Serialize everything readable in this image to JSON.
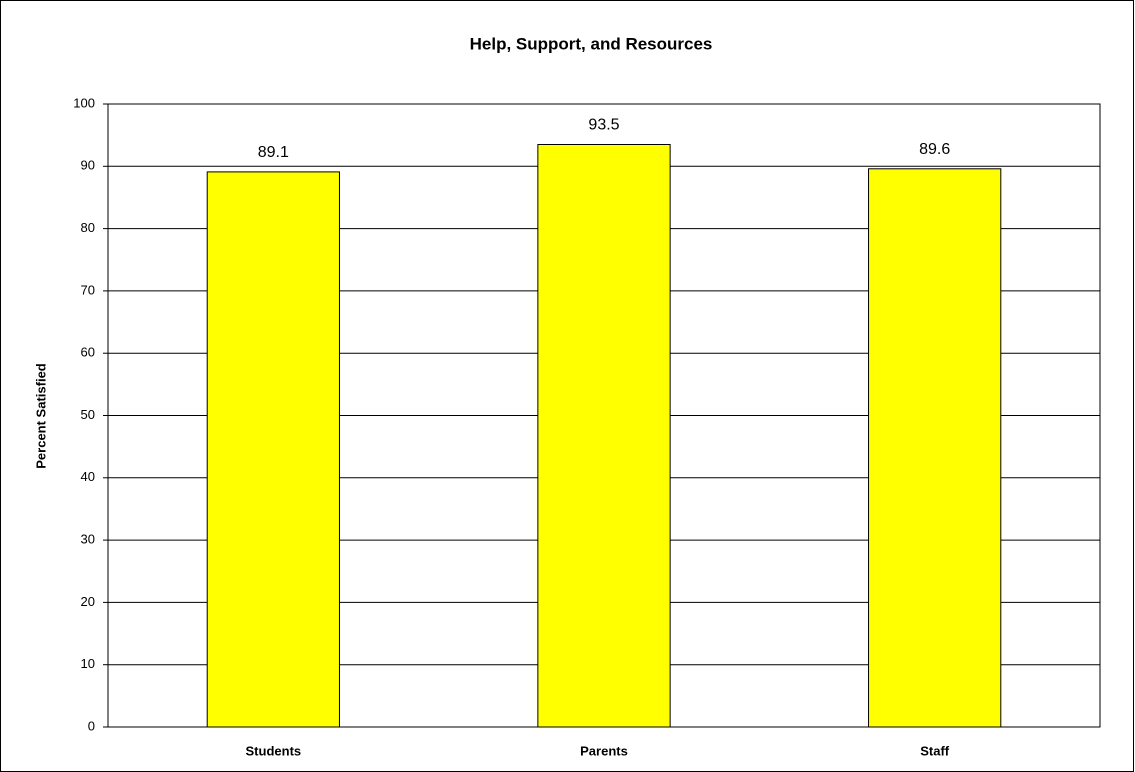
{
  "chart_data": {
    "type": "bar",
    "title": "Help, Support, and Resources",
    "y_label": "Percent Satisfied",
    "categories": [
      "Students",
      "Parents",
      "Staff"
    ],
    "values": [
      89.1,
      93.5,
      89.6
    ],
    "color": "#ffff00",
    "ylim": [
      0,
      100
    ],
    "yticks": [
      0,
      10,
      20,
      30,
      40,
      50,
      60,
      70,
      80,
      90,
      100
    ],
    "grid": true,
    "data_labels": true
  }
}
